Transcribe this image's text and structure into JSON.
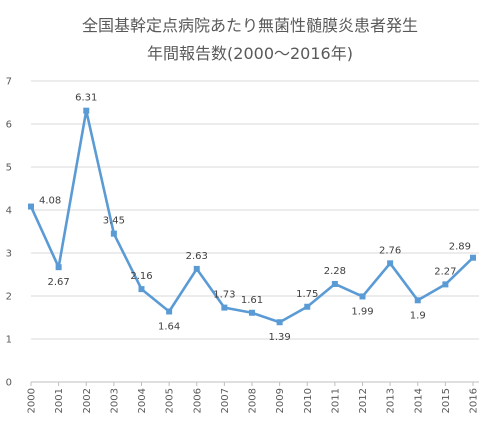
{
  "chart_data": {
    "type": "line",
    "title": "全国基幹定点病院あたり無菌性髄膜炎患者発生",
    "subtitle": "年間報告数(2000～2016年)",
    "xlabel": "",
    "ylabel": "",
    "categories": [
      "2000",
      "2001",
      "2002",
      "2003",
      "2004",
      "2005",
      "2006",
      "2007",
      "2008",
      "2009",
      "2010",
      "2011",
      "2012",
      "2013",
      "2014",
      "2015",
      "2016"
    ],
    "values": [
      4.08,
      2.67,
      6.31,
      3.45,
      2.16,
      1.64,
      2.63,
      1.73,
      1.61,
      1.39,
      1.75,
      2.28,
      1.99,
      2.76,
      1.9,
      2.27,
      2.89
    ],
    "data_labels": [
      "4.08",
      "2.67",
      "6.31",
      "3.45",
      "2.16",
      "1.64",
      "2.63",
      "1.73",
      "1.61",
      "1.39",
      "1.75",
      "2.28",
      "1.99",
      "2.76",
      "1.9",
      "2.27",
      "2.89"
    ],
    "ylim": [
      0,
      7
    ],
    "yticks": [
      0,
      1,
      2,
      3,
      4,
      5,
      6,
      7
    ],
    "ytick_labels": [
      "0",
      "1",
      "2",
      "3",
      "4",
      "5",
      "6",
      "7"
    ],
    "grid": true,
    "legend": "none",
    "colors": {
      "line": "#5b9bd5",
      "grid": "#d9d9d9",
      "axis": "#bfbfbf"
    }
  }
}
